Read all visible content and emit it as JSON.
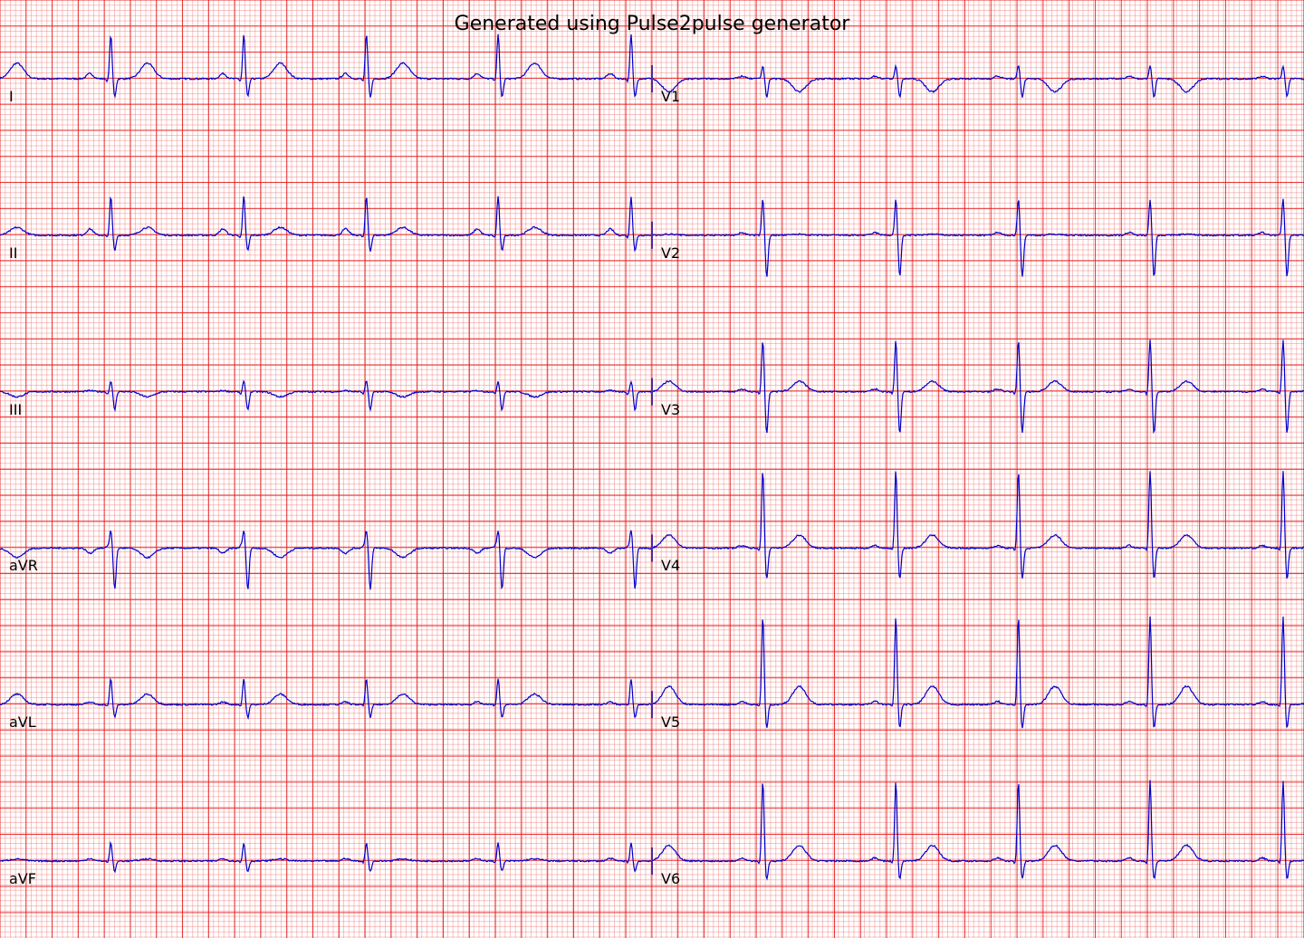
{
  "chart_data": {
    "type": "line",
    "title": "Generated using Pulse2pulse generator",
    "paper": {
      "speed_mm_per_s": 25,
      "gain_mm_per_mV": 10,
      "grid": true,
      "grid_major_color": "#e61414",
      "grid_minor_color": "#f5a0a0",
      "trace_color": "#0000cc"
    },
    "layout": "6x2",
    "duration_s_per_column": 5,
    "beat_times_s": [
      -0.15,
      0.85,
      1.87,
      2.81,
      3.82,
      4.84
    ],
    "leads": [
      {
        "name": "I",
        "column": 0,
        "row": 0,
        "P": 0.1,
        "Q": -0.05,
        "R": 0.85,
        "S": -0.35,
        "T": 0.3
      },
      {
        "name": "II",
        "column": 0,
        "row": 1,
        "P": 0.12,
        "Q": -0.05,
        "R": 0.75,
        "S": -0.3,
        "T": 0.15
      },
      {
        "name": "III",
        "column": 0,
        "row": 2,
        "P": 0.02,
        "Q": -0.05,
        "R": 0.2,
        "S": -0.35,
        "T": -0.1
      },
      {
        "name": "aVR",
        "column": 0,
        "row": 3,
        "P": -0.1,
        "Q": 0.05,
        "R": 0.35,
        "S": -0.8,
        "T": -0.18
      },
      {
        "name": "aVL",
        "column": 0,
        "row": 4,
        "P": 0.05,
        "Q": -0.03,
        "R": 0.5,
        "S": -0.25,
        "T": 0.2
      },
      {
        "name": "aVF",
        "column": 0,
        "row": 5,
        "P": 0.05,
        "Q": -0.03,
        "R": 0.35,
        "S": -0.2,
        "T": 0.04
      },
      {
        "name": "V1",
        "column": 1,
        "row": 0,
        "P": 0.05,
        "Q": 0.0,
        "R": 0.25,
        "S": -0.35,
        "T": -0.25
      },
      {
        "name": "V2",
        "column": 1,
        "row": 1,
        "P": 0.05,
        "Q": 0.0,
        "R": 0.7,
        "S": -0.8,
        "T": 0.02
      },
      {
        "name": "V3",
        "column": 1,
        "row": 2,
        "P": 0.05,
        "Q": -0.05,
        "R": 1.0,
        "S": -0.8,
        "T": 0.2
      },
      {
        "name": "V4",
        "column": 1,
        "row": 3,
        "P": 0.05,
        "Q": -0.05,
        "R": 1.5,
        "S": -0.6,
        "T": 0.25
      },
      {
        "name": "V5",
        "column": 1,
        "row": 4,
        "P": 0.06,
        "Q": -0.05,
        "R": 1.7,
        "S": -0.45,
        "T": 0.35
      },
      {
        "name": "V6",
        "column": 1,
        "row": 5,
        "P": 0.06,
        "Q": -0.05,
        "R": 1.55,
        "S": -0.35,
        "T": 0.3
      }
    ]
  }
}
